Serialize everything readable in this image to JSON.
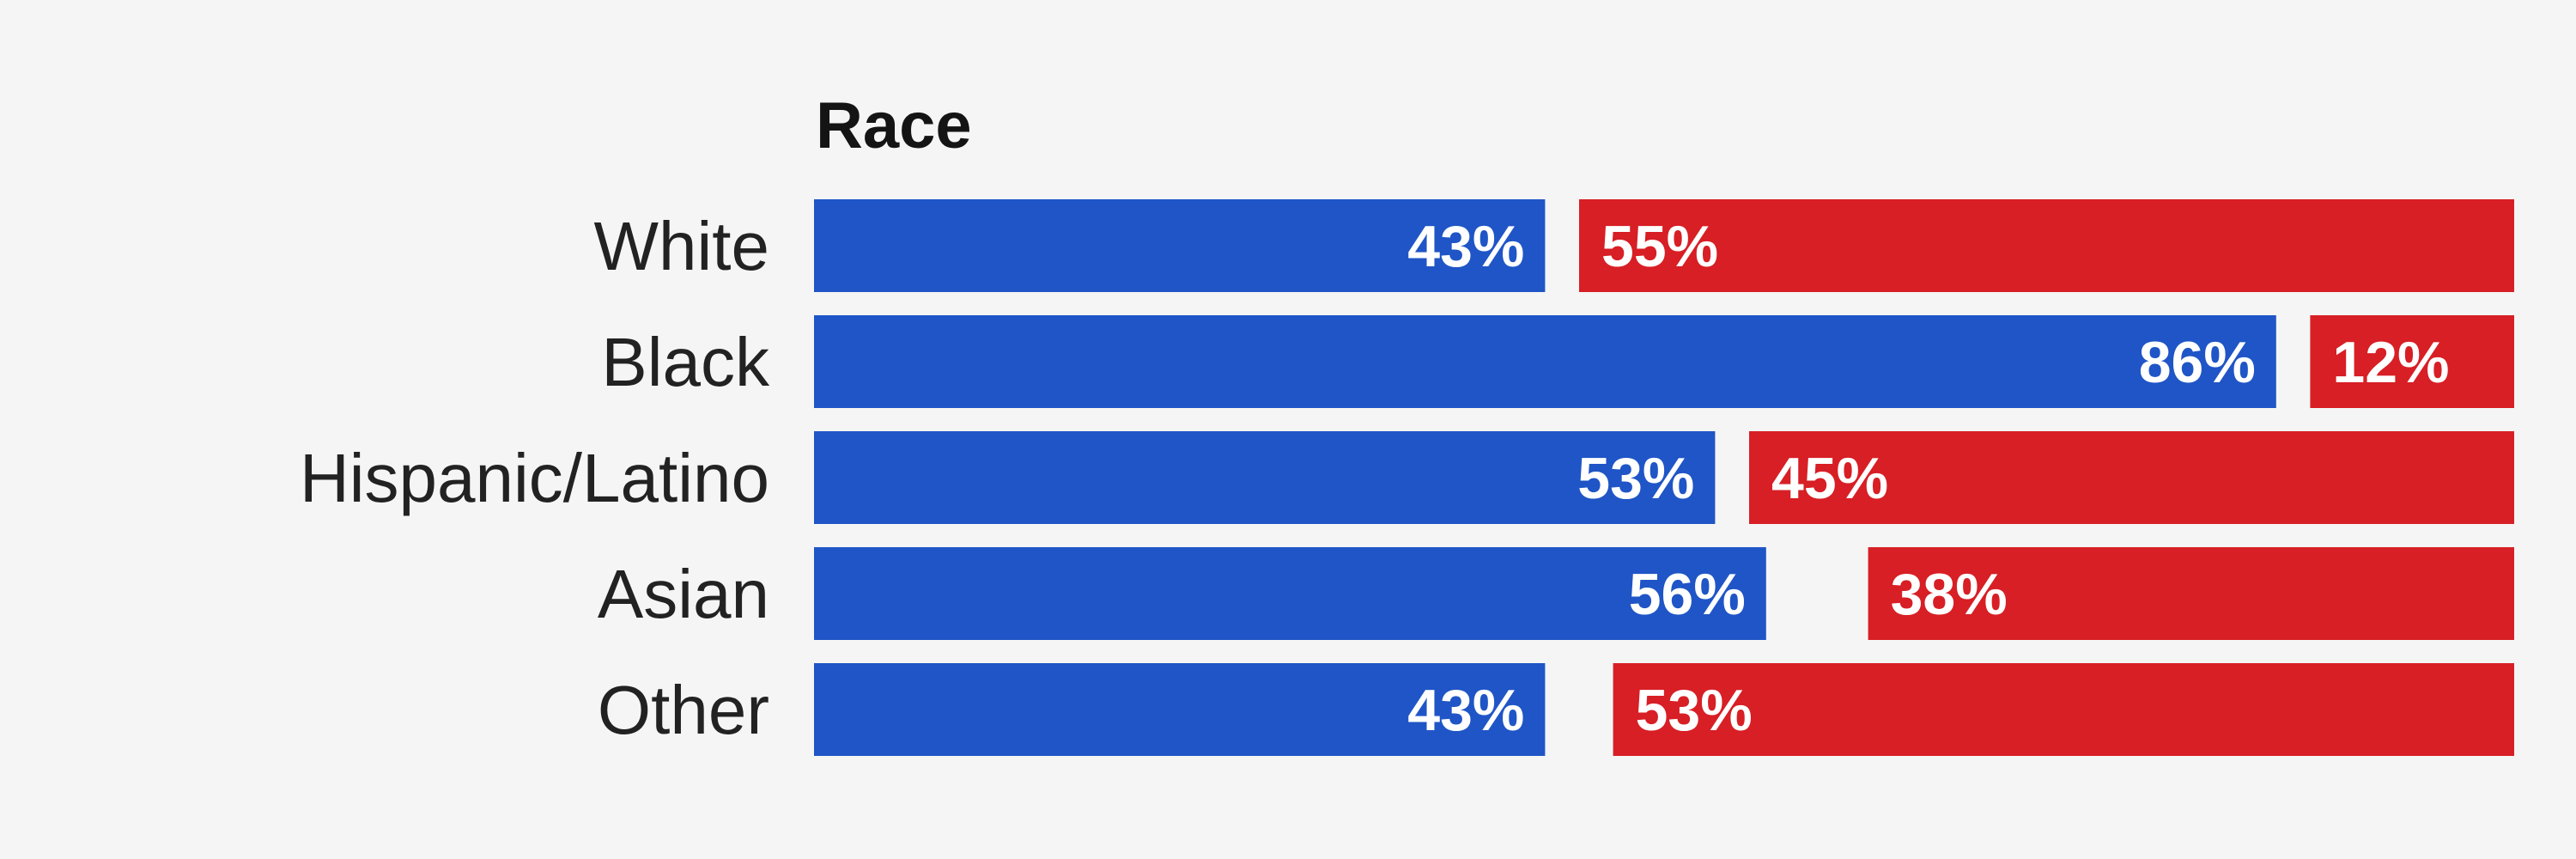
{
  "chart_data": {
    "type": "bar",
    "orientation": "horizontal",
    "stacked": true,
    "section_title": "Race",
    "categories": [
      "White",
      "Black",
      "Hispanic/Latino",
      "Asian",
      "Other"
    ],
    "series": [
      {
        "values": [
          43,
          86,
          53,
          56,
          43
        ],
        "labels": [
          "43%",
          "86%",
          "53%",
          "56%",
          "43%"
        ],
        "color": "#1f55c6"
      },
      {
        "values": [
          55,
          12,
          45,
          38,
          53
        ],
        "labels": [
          "55%",
          "12%",
          "45%",
          "38%",
          "53%"
        ],
        "color": "#d71f25"
      }
    ],
    "value_unit": "%",
    "xlim": [
      0,
      100
    ],
    "grid": false,
    "legend": "none",
    "background": "#f5f5f5"
  }
}
